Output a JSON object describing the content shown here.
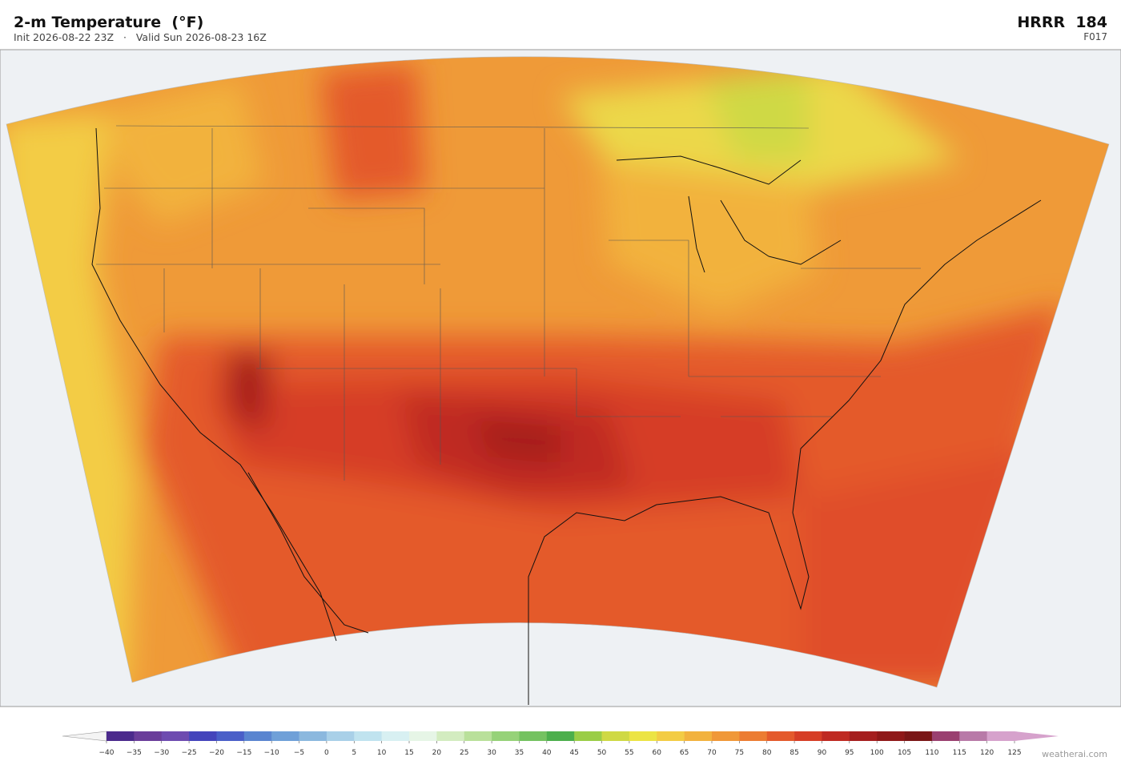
{
  "header": {
    "title": "2-m Temperature  (°F)",
    "subtitle": "Init 2026-08-22 23Z   ·   Valid Sun 2026-08-23 16Z",
    "model": "HRRR  184",
    "forecast_hour": "F017"
  },
  "colorbar": {
    "ticks": [
      {
        "value": -40,
        "label": "−40"
      },
      {
        "value": -35,
        "label": "−35"
      },
      {
        "value": -30,
        "label": "−30"
      },
      {
        "value": -25,
        "label": "−25"
      },
      {
        "value": -20,
        "label": "−20"
      },
      {
        "value": -15,
        "label": "−15"
      },
      {
        "value": -10,
        "label": "−10"
      },
      {
        "value": -5,
        "label": "−5"
      },
      0,
      5,
      10,
      15,
      20,
      25,
      30,
      35,
      40,
      45,
      50,
      55,
      60,
      65,
      70,
      75,
      80,
      85,
      90,
      95,
      100,
      105,
      110,
      115,
      120,
      125
    ],
    "colors": [
      "#4b2a8c",
      "#6a3d9a",
      "#6e4bb0",
      "#4444bb",
      "#4a5fc8",
      "#5a85d0",
      "#6fa0d8",
      "#8bb8de",
      "#a9d0e8",
      "#c0e3ef",
      "#d8f0f2",
      "#e6f5e6",
      "#d3ecc0",
      "#b9e09a",
      "#96d278",
      "#74c260",
      "#4caf4c",
      "#9acd46",
      "#cfd944",
      "#ece444",
      "#f3cc44",
      "#f2b23e",
      "#f09838",
      "#ec7c32",
      "#e45a2c",
      "#d63e26",
      "#bf2a22",
      "#a51e1e",
      "#8f1818",
      "#7a1616",
      "#9a4070",
      "#b87aa8",
      "#d6a2cc"
    ],
    "under_color": "#f4f4f4",
    "over_color": "#d6a2cc"
  },
  "credit": "weatherai.com"
}
